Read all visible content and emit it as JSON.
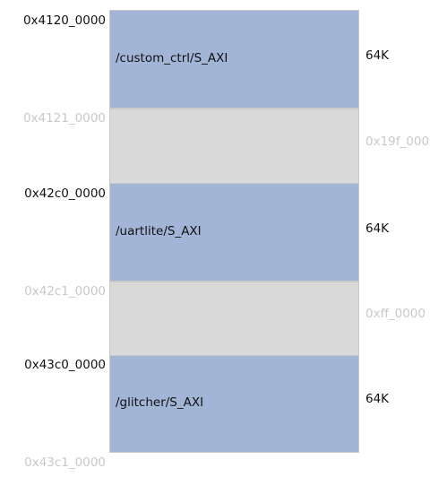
{
  "address_map": {
    "segments": [
      {
        "start": "0x4120_0000",
        "end": "0x4121_0000",
        "name": "/custom_ctrl/S_AXI",
        "size": "64K"
      },
      {
        "start": "0x42c0_0000",
        "end": "0x42c1_0000",
        "name": "/uartlite/S_AXI",
        "size": "64K"
      },
      {
        "start": "0x43c0_0000",
        "end": "0x43c1_0000",
        "name": "/glitcher/S_AXI",
        "size": "64K"
      }
    ],
    "gaps": [
      {
        "size": "0x19f_0000"
      },
      {
        "size": "0xff_0000"
      }
    ]
  },
  "colors": {
    "segment_fill": "#a2b5d7",
    "gap_fill": "#d9d9d9",
    "start_address_text": "#111111",
    "end_address_text": "#c8c8c8"
  }
}
